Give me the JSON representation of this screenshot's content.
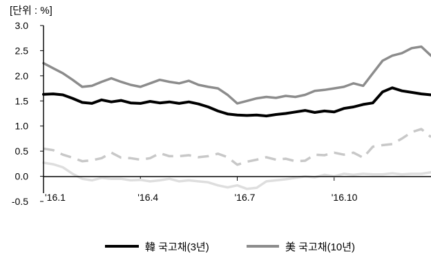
{
  "chart_data": {
    "type": "line",
    "unit_label": "[단위 : %]",
    "title": "",
    "xlabel": "",
    "ylabel": "",
    "ylim": [
      -0.5,
      3.0
    ],
    "yticks": [
      "3.0",
      "2.5",
      "2.0",
      "1.5",
      "1.0",
      "0.5",
      "0.0",
      "-0.5"
    ],
    "xtick_labels": [
      "'16.1",
      "'16.4",
      "'16.7",
      "'16.10"
    ],
    "grid": false,
    "legend_position": "bottom",
    "x_range": [
      0,
      12
    ],
    "x_ticks": [
      0,
      3,
      6,
      9
    ],
    "series": [
      {
        "name": "韓 국고채(3년)",
        "color": "#000000",
        "style": "solid",
        "x": [
          0,
          0.3,
          0.6,
          0.9,
          1.2,
          1.5,
          1.8,
          2.1,
          2.4,
          2.7,
          3.0,
          3.3,
          3.6,
          3.9,
          4.2,
          4.5,
          4.8,
          5.1,
          5.4,
          5.7,
          6.0,
          6.3,
          6.6,
          6.9,
          7.2,
          7.5,
          7.8,
          8.1,
          8.4,
          8.7,
          9.0,
          9.3,
          9.6,
          9.9,
          10.2,
          10.5,
          10.8,
          11.1,
          11.4,
          11.7,
          12.0
        ],
        "values": [
          1.63,
          1.64,
          1.62,
          1.55,
          1.47,
          1.45,
          1.52,
          1.48,
          1.51,
          1.46,
          1.45,
          1.49,
          1.46,
          1.48,
          1.45,
          1.48,
          1.44,
          1.38,
          1.3,
          1.24,
          1.22,
          1.21,
          1.22,
          1.2,
          1.23,
          1.25,
          1.28,
          1.31,
          1.27,
          1.3,
          1.28,
          1.35,
          1.38,
          1.43,
          1.46,
          1.68,
          1.76,
          1.7,
          1.67,
          1.64,
          1.62
        ]
      },
      {
        "name": "美 국고채(10년)",
        "color": "#8c8c8c",
        "style": "solid",
        "x": [
          0,
          0.3,
          0.6,
          0.9,
          1.2,
          1.5,
          1.8,
          2.1,
          2.4,
          2.7,
          3.0,
          3.3,
          3.6,
          3.9,
          4.2,
          4.5,
          4.8,
          5.1,
          5.4,
          5.7,
          6.0,
          6.3,
          6.6,
          6.9,
          7.2,
          7.5,
          7.8,
          8.1,
          8.4,
          8.7,
          9.0,
          9.3,
          9.6,
          9.9,
          10.2,
          10.5,
          10.8,
          11.1,
          11.4,
          11.7,
          12.0
        ],
        "values": [
          2.25,
          2.15,
          2.05,
          1.92,
          1.78,
          1.8,
          1.88,
          1.95,
          1.88,
          1.82,
          1.78,
          1.85,
          1.92,
          1.88,
          1.85,
          1.9,
          1.82,
          1.78,
          1.75,
          1.62,
          1.45,
          1.5,
          1.55,
          1.58,
          1.56,
          1.6,
          1.58,
          1.62,
          1.7,
          1.72,
          1.75,
          1.78,
          1.85,
          1.8,
          2.05,
          2.3,
          2.4,
          2.45,
          2.55,
          2.58,
          2.4
        ]
      },
      {
        "name": "",
        "color": "#c8c8c8",
        "style": "dashed",
        "x": [
          0,
          0.3,
          0.6,
          0.9,
          1.2,
          1.5,
          1.8,
          2.1,
          2.4,
          2.7,
          3.0,
          3.3,
          3.6,
          3.9,
          4.2,
          4.5,
          4.8,
          5.1,
          5.4,
          5.7,
          6.0,
          6.3,
          6.6,
          6.9,
          7.2,
          7.5,
          7.8,
          8.1,
          8.4,
          8.7,
          9.0,
          9.3,
          9.6,
          9.9,
          10.2,
          10.5,
          10.8,
          11.1,
          11.4,
          11.7,
          12.0
        ],
        "values": [
          0.55,
          0.52,
          0.43,
          0.37,
          0.3,
          0.32,
          0.36,
          0.47,
          0.37,
          0.36,
          0.33,
          0.36,
          0.46,
          0.4,
          0.4,
          0.42,
          0.38,
          0.4,
          0.45,
          0.38,
          0.23,
          0.29,
          0.33,
          0.38,
          0.33,
          0.35,
          0.3,
          0.31,
          0.43,
          0.42,
          0.47,
          0.43,
          0.47,
          0.37,
          0.59,
          0.62,
          0.64,
          0.75,
          0.88,
          0.94,
          0.78
        ]
      },
      {
        "name": "",
        "color": "#dedede",
        "style": "solid",
        "x": [
          0,
          0.3,
          0.6,
          0.9,
          1.2,
          1.5,
          1.8,
          2.1,
          2.4,
          2.7,
          3.0,
          3.3,
          3.6,
          3.9,
          4.2,
          4.5,
          4.8,
          5.1,
          5.4,
          5.7,
          6.0,
          6.3,
          6.6,
          6.9,
          7.2,
          7.5,
          7.8,
          8.1,
          8.4,
          8.7,
          9.0,
          9.3,
          9.6,
          9.9,
          10.2,
          10.5,
          10.8,
          11.1,
          11.4,
          11.7,
          12.0
        ],
        "values": [
          0.27,
          0.24,
          0.18,
          0.05,
          -0.05,
          -0.08,
          -0.03,
          -0.05,
          -0.05,
          -0.08,
          -0.07,
          -0.1,
          -0.08,
          -0.05,
          -0.1,
          -0.08,
          -0.1,
          -0.12,
          -0.18,
          -0.22,
          -0.18,
          -0.25,
          -0.23,
          -0.1,
          -0.08,
          -0.06,
          -0.03,
          0.0,
          -0.02,
          0.03,
          0.0,
          0.05,
          0.03,
          0.05,
          0.04,
          0.04,
          0.06,
          0.04,
          0.05,
          0.05,
          0.08
        ]
      }
    ],
    "legend": [
      {
        "label": "韓 국고채(3년)",
        "color": "#000000"
      },
      {
        "label": "美 국고채(10년)",
        "color": "#8c8c8c"
      }
    ]
  }
}
